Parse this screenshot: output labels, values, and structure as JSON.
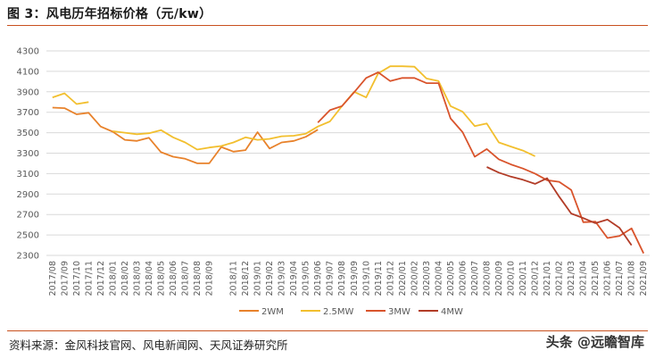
{
  "header": {
    "title": "图 3：风电历年招标价格（元/kw）"
  },
  "footer": {
    "source": "资料来源：金风科技官网、风电新闻网、天风证券研究所",
    "watermark": "头条 @远瞻智库"
  },
  "chart_data": {
    "type": "line",
    "title": "",
    "xlabel": "",
    "ylabel": "",
    "ylim": [
      2300,
      4300
    ],
    "yticks": [
      2300,
      2500,
      2700,
      2900,
      3100,
      3300,
      3500,
      3700,
      3900,
      4100,
      4300
    ],
    "grid": true,
    "legend_position": "bottom",
    "x": [
      "2017/08",
      "2017/09",
      "2017/10",
      "2017/11",
      "2017/12",
      "2018/01",
      "2018/02",
      "2018/03",
      "2018/04",
      "2018/05",
      "2018/06",
      "2018/07",
      "2018/08",
      "2018/09",
      "2018/10",
      "2018/11",
      "2018/12",
      "2019/01",
      "2019/02",
      "2019/03",
      "2019/04",
      "2019/05",
      "2019/06",
      "2019/07",
      "2019/08",
      "2019/09",
      "2019/10",
      "2019/11",
      "2019/12",
      "2020/01",
      "2020/02",
      "2020/03",
      "2020/04",
      "2020/05",
      "2020/06",
      "2020/07",
      "2020/08",
      "2020/09",
      "2020/10",
      "2020/11",
      "2020/12",
      "2021/01",
      "2021/02",
      "2021/03",
      "2021/04",
      "2021/05",
      "2021/06",
      "2021/07",
      "2021/08",
      "2021/09"
    ],
    "xticks": [
      "2017/08",
      "2017/09",
      "2017/10",
      "2017/11",
      "2017/12",
      "2018/01",
      "2018/02",
      "2018/03",
      "2018/04",
      "2018/05",
      "2018/06",
      "2018/07",
      "2018/08",
      "2018/09",
      "2018/11",
      "2018/12",
      "2019/01",
      "2019/02",
      "2019/03",
      "2019/04",
      "2019/05",
      "2019/06",
      "2019/07",
      "2019/08",
      "2019/09",
      "2019/10",
      "2019/11",
      "2019/12",
      "2020/01",
      "2020/02",
      "2020/03",
      "2020/04",
      "2020/05",
      "2020/06",
      "2020/07",
      "2020/08",
      "2020/09",
      "2020/10",
      "2020/11",
      "2020/12",
      "2021/01",
      "2021/02",
      "2021/03",
      "2021/04",
      "2021/05",
      "2021/06",
      "2021/07",
      "2021/08",
      "2021/09"
    ],
    "series": [
      {
        "name": "2WM",
        "color": "#e8822b",
        "values": [
          3745,
          3740,
          3680,
          3695,
          3560,
          3510,
          3430,
          3420,
          3450,
          3310,
          3265,
          3245,
          3200,
          3200,
          3360,
          3315,
          3330,
          3505,
          3345,
          3405,
          3420,
          3460,
          3530,
          null,
          null,
          null,
          null,
          null,
          null,
          null,
          null,
          null,
          null,
          null,
          null,
          null,
          null,
          null,
          null,
          null,
          null,
          null,
          null,
          null,
          null,
          null,
          null,
          null,
          null,
          null
        ]
      },
      {
        "name": "2.5MW",
        "color": "#f2bf2e",
        "values": [
          3845,
          3885,
          3780,
          3800,
          null,
          3515,
          3500,
          3485,
          3495,
          3525,
          3455,
          3405,
          3335,
          3355,
          3370,
          3405,
          3455,
          3430,
          3440,
          3465,
          3470,
          3490,
          3560,
          3610,
          3760,
          3900,
          3845,
          4080,
          4150,
          4150,
          4145,
          4030,
          4005,
          3760,
          3705,
          3565,
          3590,
          3405,
          3365,
          3325,
          3270,
          null,
          null,
          null,
          null,
          null,
          null,
          null,
          null,
          null
        ]
      },
      {
        "name": "3MW",
        "color": "#d9542c",
        "values": [
          null,
          null,
          null,
          null,
          null,
          null,
          null,
          null,
          null,
          null,
          null,
          null,
          null,
          null,
          null,
          null,
          null,
          null,
          null,
          null,
          null,
          null,
          3600,
          3720,
          3760,
          3895,
          4035,
          4090,
          4005,
          4035,
          4035,
          3985,
          3985,
          3640,
          3505,
          3265,
          3340,
          3240,
          3190,
          3150,
          3100,
          3035,
          3020,
          2940,
          2625,
          2630,
          2470,
          2490,
          2565,
          2320
        ]
      },
      {
        "name": "4MW",
        "color": "#b23c27",
        "values": [
          null,
          null,
          null,
          null,
          null,
          null,
          null,
          null,
          null,
          null,
          null,
          null,
          null,
          null,
          null,
          null,
          null,
          null,
          null,
          null,
          null,
          null,
          null,
          null,
          null,
          null,
          null,
          null,
          null,
          null,
          null,
          null,
          null,
          null,
          null,
          null,
          3165,
          3110,
          3070,
          3040,
          3000,
          3055,
          2875,
          2710,
          2665,
          2615,
          2650,
          2570,
          2400,
          null
        ]
      }
    ]
  }
}
